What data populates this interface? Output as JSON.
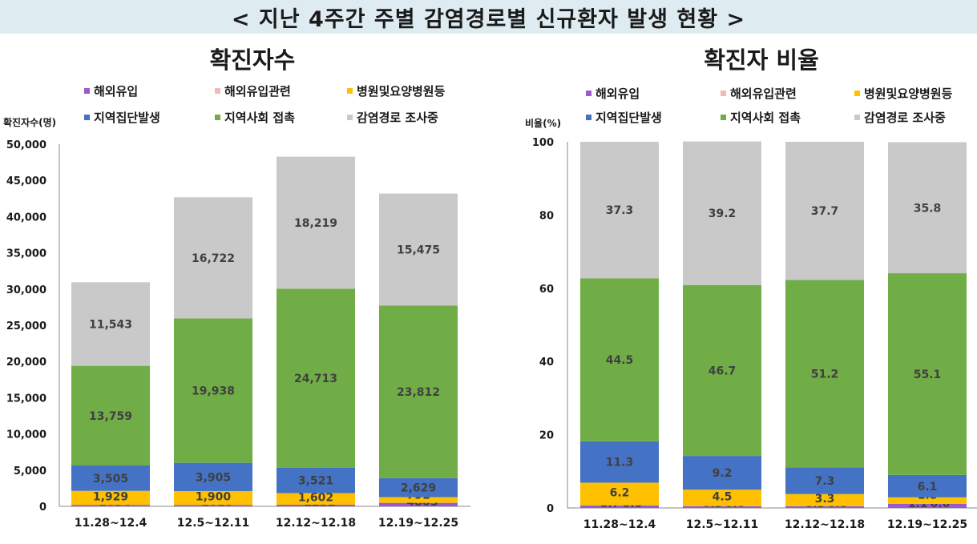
{
  "header": {
    "title": "< 지난 4주간 주별 감염경로별 신규환자 발생 현황 >"
  },
  "chart_data": [
    {
      "type": "bar",
      "stacked": true,
      "title": "확진자수",
      "ylabel": "확진자수(명)",
      "ylim": [
        0,
        50000
      ],
      "yticks": [
        "0",
        "5,000",
        "10,000",
        "15,000",
        "20,000",
        "25,000",
        "30,000",
        "35,000",
        "40,000",
        "45,000",
        "50,000"
      ],
      "legend_position": "top",
      "categories": [
        "11.28~12.4",
        "12.5~12.11",
        "12.12~12.18",
        "12.19~12.25"
      ],
      "series": [
        {
          "name": "해외유입",
          "color": "#9b59d0",
          "values": [
            205,
            201,
            223,
            480
          ],
          "labels": [
            "205",
            "201",
            "223",
            "480"
          ]
        },
        {
          "name": "해외유입관련",
          "color": "#f7b7b7",
          "values": [
            4,
            5,
            2,
            3
          ],
          "labels": [
            "4",
            "5",
            "2",
            "3"
          ]
        },
        {
          "name": "병원및요양병원등",
          "color": "#ffc000",
          "values": [
            1929,
            1900,
            1602,
            791
          ],
          "labels": [
            "1,929",
            "1,900",
            "1,602",
            "791"
          ]
        },
        {
          "name": "지역집단발생",
          "color": "#4472c4",
          "values": [
            3505,
            3905,
            3521,
            2629
          ],
          "labels": [
            "3,505",
            "3,905",
            "3,521",
            "2,629"
          ]
        },
        {
          "name": "지역사회 접촉",
          "color": "#70ad47",
          "values": [
            13759,
            19938,
            24713,
            23812
          ],
          "labels": [
            "13,759",
            "19,938",
            "24,713",
            "23,812"
          ]
        },
        {
          "name": "감염경로 조사중",
          "color": "#c9c9c9",
          "values": [
            11543,
            16722,
            18219,
            15475
          ],
          "labels": [
            "11,543",
            "16,722",
            "18,219",
            "15,475"
          ]
        }
      ]
    },
    {
      "type": "bar",
      "stacked": true,
      "title": "확진자 비율",
      "ylabel": "비율(%)",
      "ylim": [
        0,
        100
      ],
      "yticks": [
        "0",
        "20",
        "40",
        "60",
        "80",
        "100"
      ],
      "legend_position": "top",
      "categories": [
        "11.28~12.4",
        "12.5~12.11",
        "12.12~12.18",
        "12.19~12.25"
      ],
      "series": [
        {
          "name": "해외유입",
          "color": "#9b59d0",
          "values": [
            0.7,
            0.5,
            0.5,
            1.1
          ],
          "labels": [
            "0.7",
            "0.5",
            "0.5",
            "1.1"
          ]
        },
        {
          "name": "해외유입관련",
          "color": "#f7b7b7",
          "values": [
            0.0,
            0.0,
            0.0,
            0.0
          ],
          "labels": [
            "0.0",
            "0.0",
            "0.0",
            "0.0"
          ]
        },
        {
          "name": "병원및요양병원등",
          "color": "#ffc000",
          "values": [
            6.2,
            4.5,
            3.3,
            1.8
          ],
          "labels": [
            "6.2",
            "4.5",
            "3.3",
            "1.8"
          ]
        },
        {
          "name": "지역집단발생",
          "color": "#4472c4",
          "values": [
            11.3,
            9.2,
            7.3,
            6.1
          ],
          "labels": [
            "11.3",
            "9.2",
            "7.3",
            "6.1"
          ]
        },
        {
          "name": "지역사회 접촉",
          "color": "#70ad47",
          "values": [
            44.5,
            46.7,
            51.2,
            55.1
          ],
          "labels": [
            "44.5",
            "46.7",
            "51.2",
            "55.1"
          ]
        },
        {
          "name": "감염경로 조사중",
          "color": "#c9c9c9",
          "values": [
            37.3,
            39.2,
            37.7,
            35.8
          ],
          "labels": [
            "37.3",
            "39.2",
            "37.7",
            "35.8"
          ]
        }
      ]
    }
  ]
}
